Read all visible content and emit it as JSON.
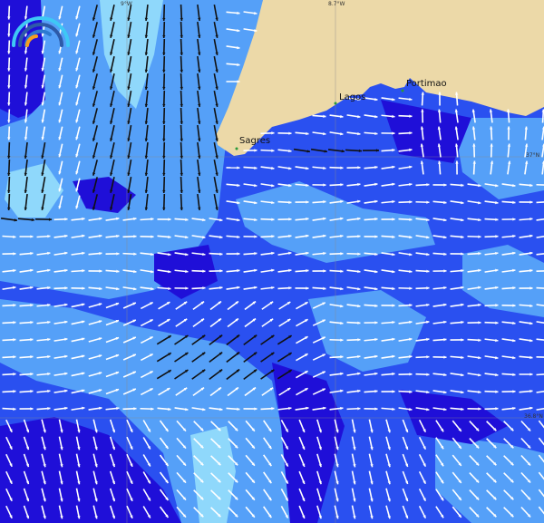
{
  "map": {
    "type": "ocean-current-vectors",
    "colors": {
      "land": "#ecd9a8",
      "deep": "#1f0fd8",
      "mid": "#2a50f0",
      "light": "#55a0f8",
      "lighter": "#8fd8fb",
      "arrow_fast": "#111111",
      "arrow_slow": "#ffffff"
    },
    "grid_labels": {
      "lon_left": "9°W",
      "lon_right": "8.7°W",
      "lat_top": "37°N",
      "lat_bottom": "36.8°N"
    },
    "places": [
      {
        "name": "Sagres"
      },
      {
        "name": "Lagos"
      },
      {
        "name": "Portimao"
      }
    ],
    "legend_icon": "speed-gauge-icon"
  }
}
